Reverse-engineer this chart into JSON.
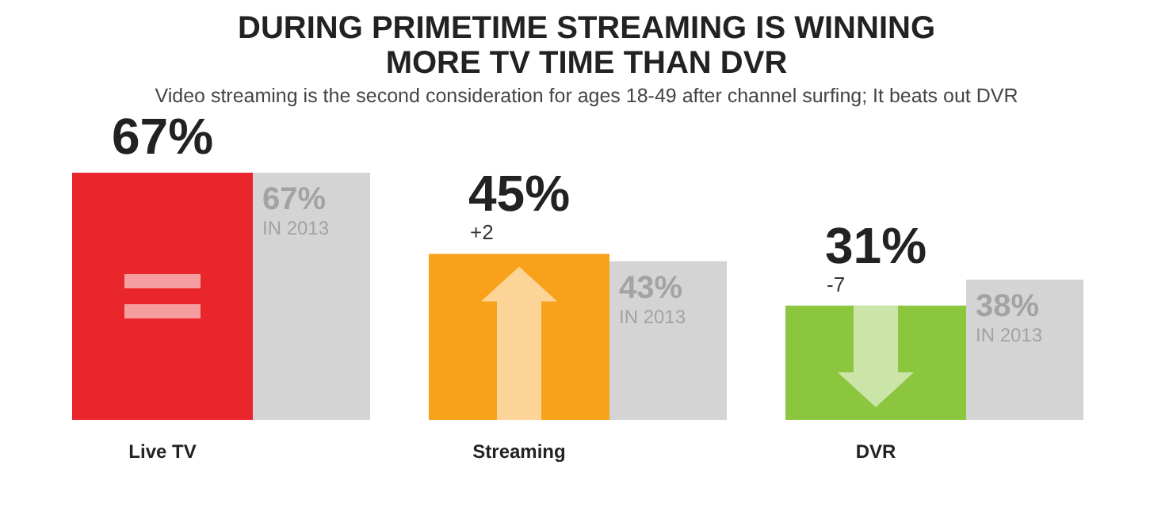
{
  "chart_data": {
    "type": "bar",
    "title": "DURING PRIMETIME STREAMING IS WINNING\nMORE TV TIME THAN DVR",
    "subtitle": "Video streaming is the second consideration for ages 18-49 after channel surfing; It beats out DVR",
    "categories": [
      "Live TV",
      "Streaming",
      "DVR"
    ],
    "series": [
      {
        "colors": [
          "#e8262b",
          "#f9a11b",
          "#8cc63f"
        ],
        "values": [
          67,
          45,
          31
        ],
        "value_labels": [
          "67%",
          "45%",
          "31%"
        ]
      },
      {
        "name": "IN 2013",
        "color": "#d4d4d4",
        "values": [
          67,
          43,
          38
        ],
        "value_labels": [
          "67%",
          "43%",
          "38%"
        ]
      }
    ],
    "annotations": [
      {
        "text": "+2",
        "x": "Streaming",
        "y": 45
      },
      {
        "text": "-7",
        "x": "DVR",
        "y": 31
      }
    ],
    "legend": false
  }
}
